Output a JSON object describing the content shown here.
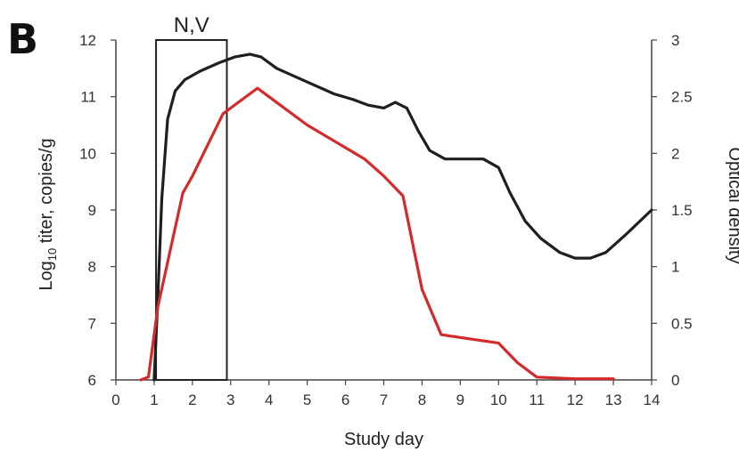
{
  "panel_label": "B",
  "chart_data": {
    "type": "line",
    "xlabel": "Study day",
    "ylabel_left": {
      "base": "Log",
      "sub": "10",
      "rest": " titer, copies/g"
    },
    "ylabel_right": "Optical density",
    "x_ticks": [
      "0",
      "1",
      "2",
      "3",
      "4",
      "5",
      "6",
      "7",
      "8",
      "9",
      "10",
      "11",
      "12",
      "13",
      "14"
    ],
    "y_left_ticks": [
      "6",
      "7",
      "8",
      "9",
      "10",
      "11",
      "12"
    ],
    "y_right_ticks": [
      "0",
      "0.5",
      "1",
      "1.5",
      "2",
      "2.5",
      "3"
    ],
    "xlim": [
      0,
      14
    ],
    "ylim_left": [
      6,
      12
    ],
    "ylim_right": [
      0,
      3
    ],
    "grid": false,
    "annotation": {
      "label": "N,V",
      "x_start": 1.05,
      "x_end": 2.9
    },
    "series": [
      {
        "axis": "left",
        "color": "#1f1f1f",
        "points": [
          [
            1.0,
            6.0
          ],
          [
            1.1,
            7.5
          ],
          [
            1.2,
            9.2
          ],
          [
            1.35,
            10.6
          ],
          [
            1.55,
            11.1
          ],
          [
            1.8,
            11.3
          ],
          [
            2.2,
            11.45
          ],
          [
            2.7,
            11.6
          ],
          [
            3.1,
            11.7
          ],
          [
            3.5,
            11.75
          ],
          [
            3.8,
            11.7
          ],
          [
            4.2,
            11.5
          ],
          [
            4.7,
            11.35
          ],
          [
            5.2,
            11.2
          ],
          [
            5.7,
            11.05
          ],
          [
            6.2,
            10.95
          ],
          [
            6.6,
            10.85
          ],
          [
            7.0,
            10.8
          ],
          [
            7.3,
            10.9
          ],
          [
            7.6,
            10.8
          ],
          [
            7.9,
            10.4
          ],
          [
            8.2,
            10.05
          ],
          [
            8.6,
            9.9
          ],
          [
            9.1,
            9.9
          ],
          [
            9.6,
            9.9
          ],
          [
            10.0,
            9.75
          ],
          [
            10.3,
            9.3
          ],
          [
            10.7,
            8.8
          ],
          [
            11.1,
            8.5
          ],
          [
            11.6,
            8.25
          ],
          [
            12.0,
            8.15
          ],
          [
            12.4,
            8.15
          ],
          [
            12.8,
            8.25
          ],
          [
            13.3,
            8.55
          ],
          [
            14.0,
            9.0
          ]
        ]
      },
      {
        "axis": "left",
        "color": "#d42a2a",
        "points": [
          [
            0.65,
            6.0
          ],
          [
            0.85,
            6.05
          ],
          [
            1.1,
            7.3
          ],
          [
            1.75,
            9.3
          ],
          [
            2.0,
            9.6
          ],
          [
            2.8,
            10.7
          ],
          [
            3.0,
            10.8
          ],
          [
            3.7,
            11.15
          ],
          [
            4.0,
            11.0
          ],
          [
            5.0,
            10.5
          ],
          [
            6.0,
            10.1
          ],
          [
            6.5,
            9.9
          ],
          [
            7.0,
            9.6
          ],
          [
            7.5,
            9.25
          ],
          [
            8.0,
            7.6
          ],
          [
            8.5,
            6.8
          ],
          [
            9.0,
            6.75
          ],
          [
            9.5,
            6.7
          ],
          [
            10.0,
            6.65
          ],
          [
            10.5,
            6.3
          ],
          [
            11.0,
            6.05
          ],
          [
            12.0,
            6.02
          ],
          [
            13.0,
            6.02
          ]
        ]
      }
    ]
  }
}
